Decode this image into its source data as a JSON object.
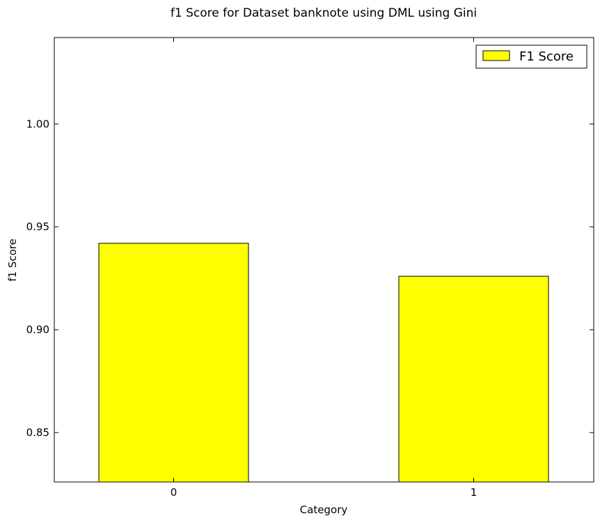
{
  "chart_data": {
    "type": "bar",
    "title": "f1 Score for Dataset banknote using DML using Gini",
    "xlabel": "Category",
    "ylabel": "f1 Score",
    "categories": [
      "0",
      "1"
    ],
    "series": [
      {
        "name": "F1 Score",
        "values": [
          0.942,
          0.926
        ],
        "color": "#ffff00"
      }
    ],
    "ylim": [
      0.826,
      1.042
    ],
    "yticks": [
      "0.85",
      "0.90",
      "0.95",
      "1.00"
    ],
    "grid": false,
    "legend_position": "top-right"
  }
}
